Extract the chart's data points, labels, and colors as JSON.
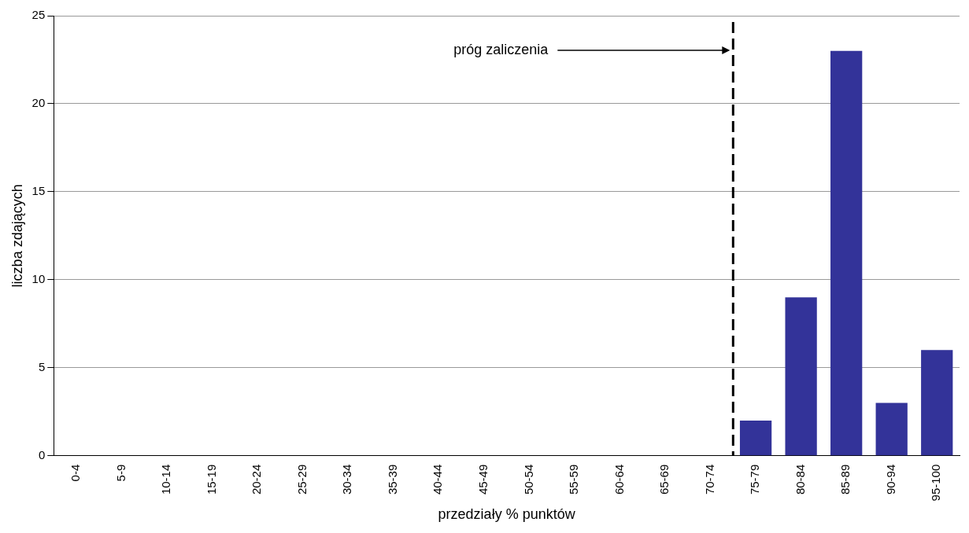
{
  "chart_data": {
    "type": "bar",
    "xlabel": "przedziały % punktów",
    "ylabel": "liczba zdających",
    "categories": [
      "0-4",
      "5-9",
      "10-14",
      "15-19",
      "20-24",
      "25-29",
      "30-34",
      "35-39",
      "40-44",
      "45-49",
      "50-54",
      "55-59",
      "60-64",
      "65-69",
      "70-74",
      "75-79",
      "80-84",
      "85-89",
      "90-94",
      "95-100"
    ],
    "values": [
      0,
      0,
      0,
      0,
      0,
      0,
      0,
      0,
      0,
      0,
      0,
      0,
      0,
      0,
      0,
      2,
      9,
      23,
      3,
      6
    ],
    "color": "#333399",
    "ylim": [
      0,
      25
    ],
    "yticks": [
      0,
      5,
      10,
      15,
      20,
      25
    ],
    "grid": "y",
    "legend": false,
    "ref_lines": [
      {
        "axis": "x",
        "value": "75-79",
        "label": "próg zaliczenia",
        "color": "#000000",
        "line_style": "dashed"
      }
    ]
  }
}
